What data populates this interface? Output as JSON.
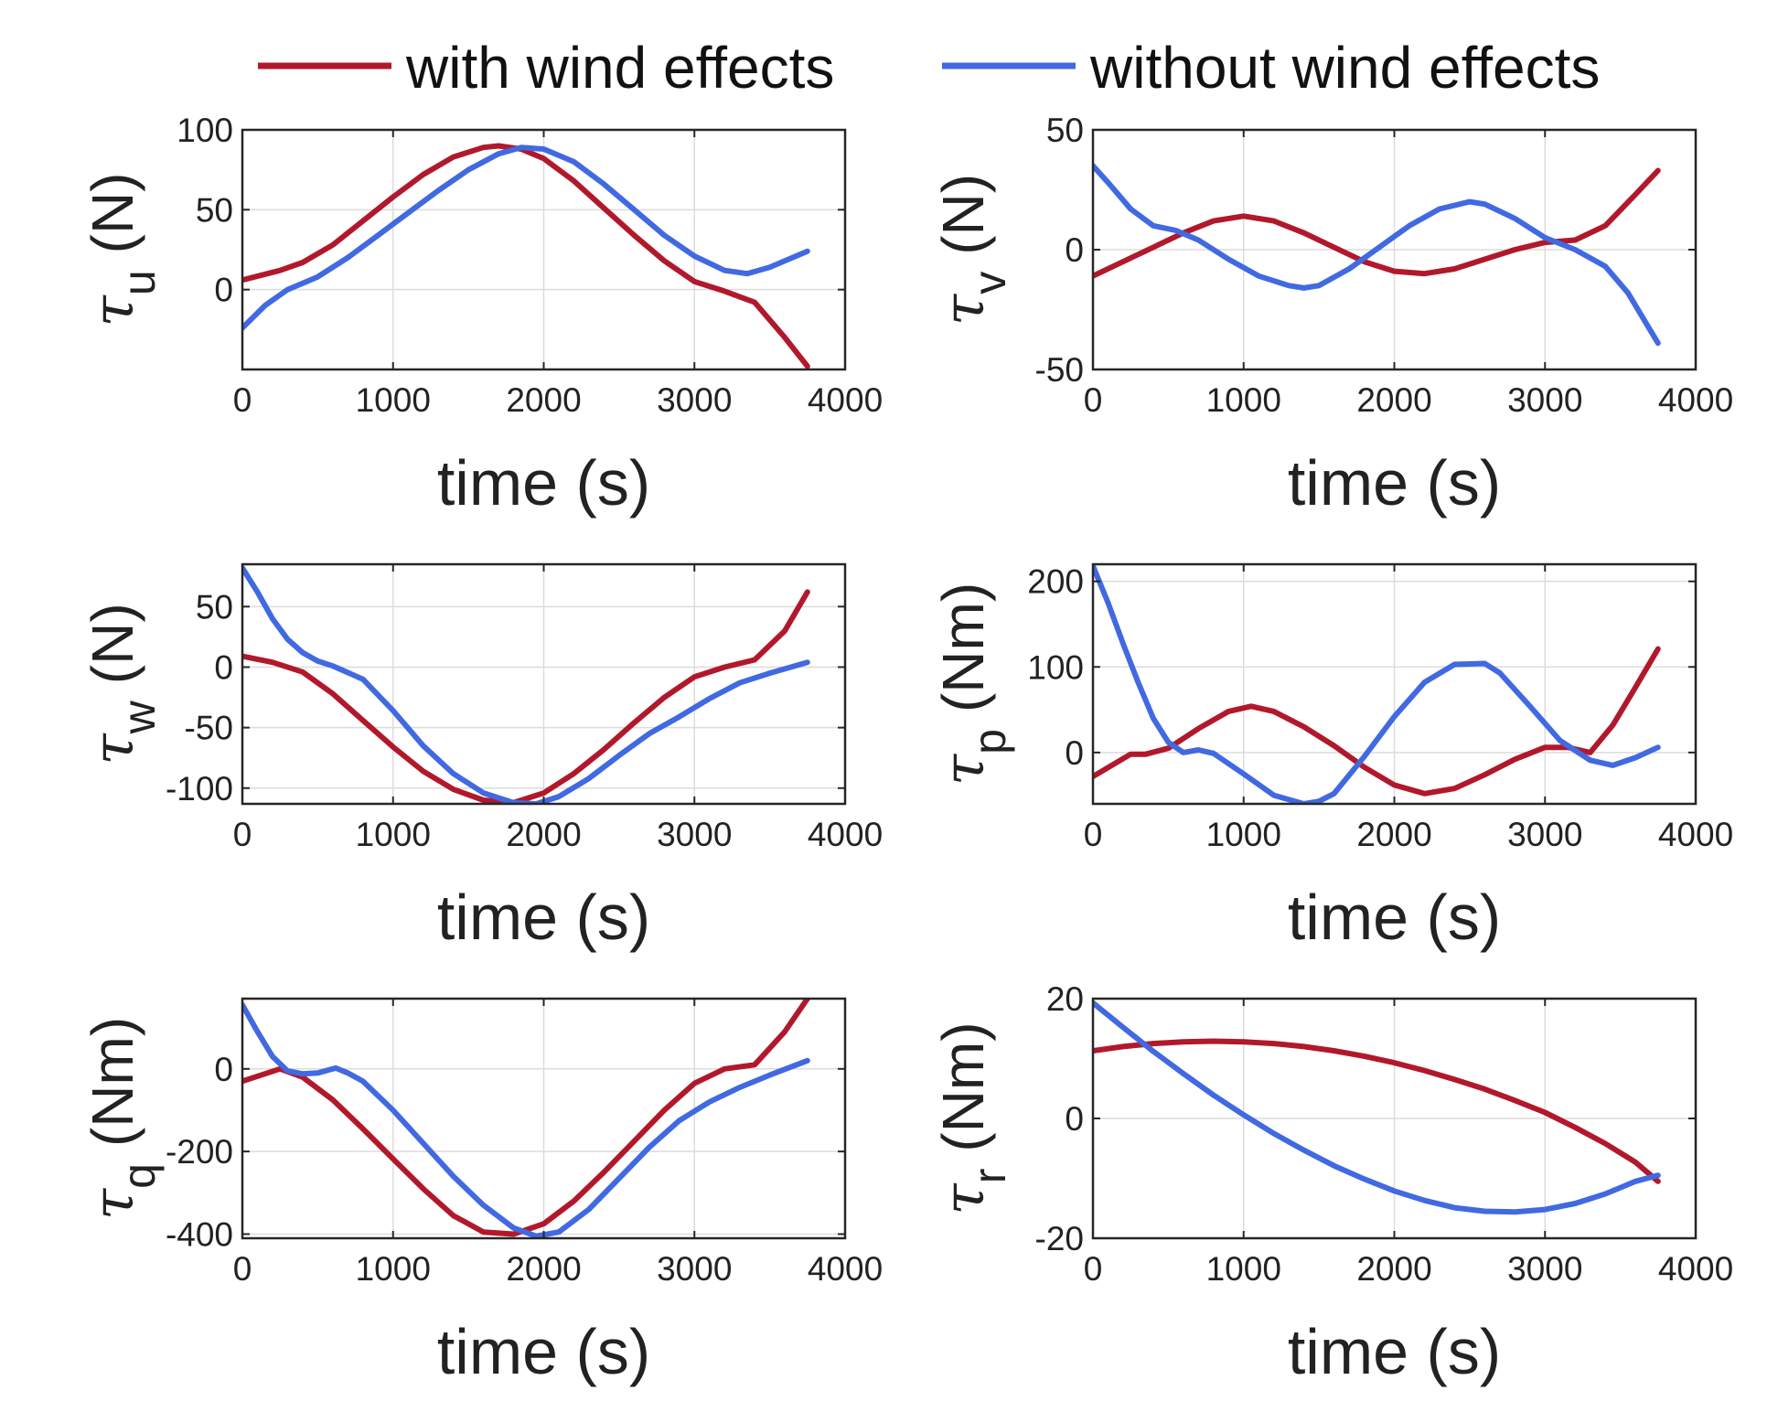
{
  "chart_data": {
    "legend": [
      {
        "name": "with wind effects",
        "color": "#B2182B"
      },
      {
        "name": "without wind effects",
        "color": "#4169E1"
      }
    ],
    "subplots": [
      {
        "type": "line",
        "tau": "τ",
        "sub": "u",
        "unit": "(N)",
        "xlabel": "time (s)",
        "xlim": [
          0,
          4000
        ],
        "xticks": [
          0,
          1000,
          2000,
          3000,
          4000
        ],
        "ylim": [
          -50,
          100
        ],
        "yticks": [
          0,
          50,
          100
        ],
        "series": [
          {
            "name": "with wind effects",
            "x": [
              0,
              250,
              400,
              600,
              800,
              1000,
              1200,
              1400,
              1600,
              1700,
              1850,
              2000,
              2200,
              2400,
              2600,
              2800,
              3000,
              3200,
              3400,
              3600,
              3750
            ],
            "y": [
              6,
              12,
              17,
              28,
              43,
              58,
              72,
              83,
              89,
              90,
              88,
              82,
              68,
              51,
              34,
              18,
              5,
              -1,
              -8,
              -30,
              -48
            ]
          },
          {
            "name": "without wind effects",
            "x": [
              0,
              150,
              300,
              500,
              700,
              900,
              1100,
              1300,
              1500,
              1700,
              1850,
              2000,
              2200,
              2400,
              2600,
              2800,
              3000,
              3200,
              3350,
              3500,
              3750
            ],
            "y": [
              -24,
              -10,
              0,
              8,
              20,
              34,
              48,
              62,
              75,
              85,
              89,
              88,
              80,
              66,
              50,
              34,
              21,
              12,
              10,
              14,
              24
            ]
          }
        ]
      },
      {
        "type": "line",
        "tau": "τ",
        "sub": "v",
        "unit": "(N)",
        "xlabel": "time (s)",
        "xlim": [
          0,
          4000
        ],
        "xticks": [
          0,
          1000,
          2000,
          3000,
          4000
        ],
        "ylim": [
          -50,
          50
        ],
        "yticks": [
          -50,
          0,
          50
        ],
        "series": [
          {
            "name": "with wind effects",
            "x": [
              0,
              200,
              400,
              600,
              800,
              1000,
              1200,
              1400,
              1600,
              1800,
              2000,
              2200,
              2400,
              2600,
              2800,
              3000,
              3200,
              3400,
              3600,
              3750
            ],
            "y": [
              -11,
              -5,
              1,
              7,
              12,
              14,
              12,
              7,
              1,
              -5,
              -9,
              -10,
              -8,
              -4,
              0,
              3,
              4,
              10,
              23,
              33
            ]
          },
          {
            "name": "without wind effects",
            "x": [
              0,
              100,
              250,
              400,
              550,
              700,
              900,
              1100,
              1300,
              1400,
              1500,
              1700,
              1900,
              2100,
              2300,
              2500,
              2600,
              2800,
              3000,
              3200,
              3400,
              3550,
              3750
            ],
            "y": [
              35,
              28,
              17,
              10,
              8,
              4,
              -4,
              -11,
              -15,
              -16,
              -15,
              -8,
              1,
              10,
              17,
              20,
              19,
              13,
              5,
              0,
              -7,
              -18,
              -39
            ]
          }
        ]
      },
      {
        "type": "line",
        "tau": "τ",
        "sub": "w",
        "unit": "(N)",
        "xlabel": "time (s)",
        "xlim": [
          0,
          4000
        ],
        "xticks": [
          0,
          1000,
          2000,
          3000,
          4000
        ],
        "ylim": [
          -113,
          85
        ],
        "yticks": [
          -100,
          -50,
          0,
          50
        ],
        "series": [
          {
            "name": "with wind effects",
            "x": [
              0,
              200,
              400,
              600,
              800,
              1000,
              1200,
              1400,
              1600,
              1800,
              2000,
              2200,
              2400,
              2600,
              2800,
              3000,
              3200,
              3400,
              3600,
              3750
            ],
            "y": [
              9,
              4,
              -4,
              -22,
              -44,
              -66,
              -86,
              -101,
              -110,
              -112,
              -104,
              -88,
              -68,
              -46,
              -25,
              -8,
              0,
              6,
              30,
              62
            ]
          },
          {
            "name": "without wind effects",
            "x": [
              0,
              100,
              200,
              300,
              400,
              500,
              600,
              800,
              1000,
              1200,
              1400,
              1600,
              1800,
              1950,
              2100,
              2300,
              2500,
              2700,
              2900,
              3100,
              3300,
              3500,
              3750
            ],
            "y": [
              82,
              62,
              40,
              23,
              12,
              5,
              1,
              -10,
              -36,
              -65,
              -88,
              -104,
              -112,
              -113,
              -107,
              -92,
              -73,
              -55,
              -41,
              -26,
              -13,
              -5,
              4
            ]
          }
        ]
      },
      {
        "type": "line",
        "tau": "τ",
        "sub": "p",
        "unit": "(Nm)",
        "xlabel": "time (s)",
        "xlim": [
          0,
          4000
        ],
        "xticks": [
          0,
          1000,
          2000,
          3000,
          4000
        ],
        "ylim": [
          -60,
          220
        ],
        "yticks": [
          0,
          100,
          200
        ],
        "series": [
          {
            "name": "with wind effects",
            "x": [
              0,
              250,
              350,
              500,
              700,
              900,
              1050,
              1200,
              1400,
              1600,
              1800,
              2000,
              2200,
              2400,
              2600,
              2800,
              3000,
              3150,
              3300,
              3450,
              3600,
              3750
            ],
            "y": [
              -28,
              -2,
              -2,
              5,
              28,
              48,
              54,
              48,
              30,
              8,
              -17,
              -38,
              -48,
              -42,
              -26,
              -8,
              6,
              6,
              0,
              32,
              76,
              121
            ]
          },
          {
            "name": "without wind effects",
            "x": [
              0,
              100,
              200,
              300,
              400,
              500,
              600,
              700,
              800,
              1000,
              1200,
              1400,
              1500,
              1600,
              1800,
              2000,
              2200,
              2400,
              2600,
              2700,
              2900,
              3100,
              3300,
              3450,
              3600,
              3750
            ],
            "y": [
              218,
              175,
              127,
              82,
              40,
              12,
              0,
              3,
              -1,
              -25,
              -50,
              -60,
              -57,
              -48,
              -5,
              42,
              82,
              103,
              104,
              93,
              54,
              14,
              -9,
              -15,
              -6,
              6
            ]
          }
        ]
      },
      {
        "type": "line",
        "tau": "τ",
        "sub": "q",
        "unit": "(Nm)",
        "xlabel": "time (s)",
        "xlim": [
          0,
          4000
        ],
        "xticks": [
          0,
          1000,
          2000,
          3000,
          4000
        ],
        "ylim": [
          -410,
          170
        ],
        "yticks": [
          -400,
          -200,
          0
        ],
        "series": [
          {
            "name": "with wind effects",
            "x": [
              0,
              250,
              400,
              600,
              800,
              1000,
              1200,
              1400,
              1600,
              1800,
              2000,
              2200,
              2400,
              2600,
              2800,
              3000,
              3200,
              3400,
              3600,
              3750
            ],
            "y": [
              -30,
              0,
              -20,
              -75,
              -145,
              -218,
              -290,
              -355,
              -395,
              -400,
              -375,
              -320,
              -250,
              -175,
              -100,
              -35,
              0,
              10,
              90,
              170
            ]
          },
          {
            "name": "without wind effects",
            "x": [
              0,
              100,
              200,
              300,
              400,
              500,
              620,
              700,
              800,
              1000,
              1200,
              1400,
              1600,
              1800,
              1950,
              2100,
              2300,
              2500,
              2700,
              2900,
              3100,
              3300,
              3500,
              3750
            ],
            "y": [
              155,
              90,
              30,
              -5,
              -12,
              -10,
              2,
              -10,
              -30,
              -100,
              -180,
              -260,
              -330,
              -385,
              -405,
              -395,
              -340,
              -265,
              -190,
              -125,
              -80,
              -45,
              -15,
              20
            ]
          }
        ]
      },
      {
        "type": "line",
        "tau": "τ",
        "sub": "r",
        "unit": "(Nm)",
        "xlabel": "time (s)",
        "xlim": [
          0,
          4000
        ],
        "xticks": [
          0,
          1000,
          2000,
          3000,
          4000
        ],
        "ylim": [
          -20,
          20
        ],
        "yticks": [
          -20,
          0,
          20
        ],
        "series": [
          {
            "name": "with wind effects",
            "x": [
              0,
              200,
              400,
              600,
              800,
              1000,
              1200,
              1400,
              1600,
              1800,
              2000,
              2200,
              2400,
              2600,
              2800,
              3000,
              3200,
              3400,
              3600,
              3750
            ],
            "y": [
              11.3,
              12.0,
              12.5,
              12.8,
              12.9,
              12.8,
              12.5,
              12.0,
              11.3,
              10.4,
              9.3,
              8.0,
              6.5,
              4.9,
              3.0,
              1.0,
              -1.5,
              -4.2,
              -7.3,
              -10.5
            ]
          },
          {
            "name": "without wind effects",
            "x": [
              0,
              200,
              400,
              600,
              800,
              1000,
              1200,
              1400,
              1600,
              1800,
              2000,
              2200,
              2400,
              2600,
              2800,
              3000,
              3200,
              3400,
              3600,
              3750
            ],
            "y": [
              19.3,
              15.2,
              11.2,
              7.5,
              3.9,
              0.6,
              -2.5,
              -5.3,
              -7.9,
              -10.1,
              -12.1,
              -13.7,
              -14.9,
              -15.5,
              -15.6,
              -15.2,
              -14.2,
              -12.6,
              -10.5,
              -9.5
            ]
          }
        ]
      }
    ]
  }
}
